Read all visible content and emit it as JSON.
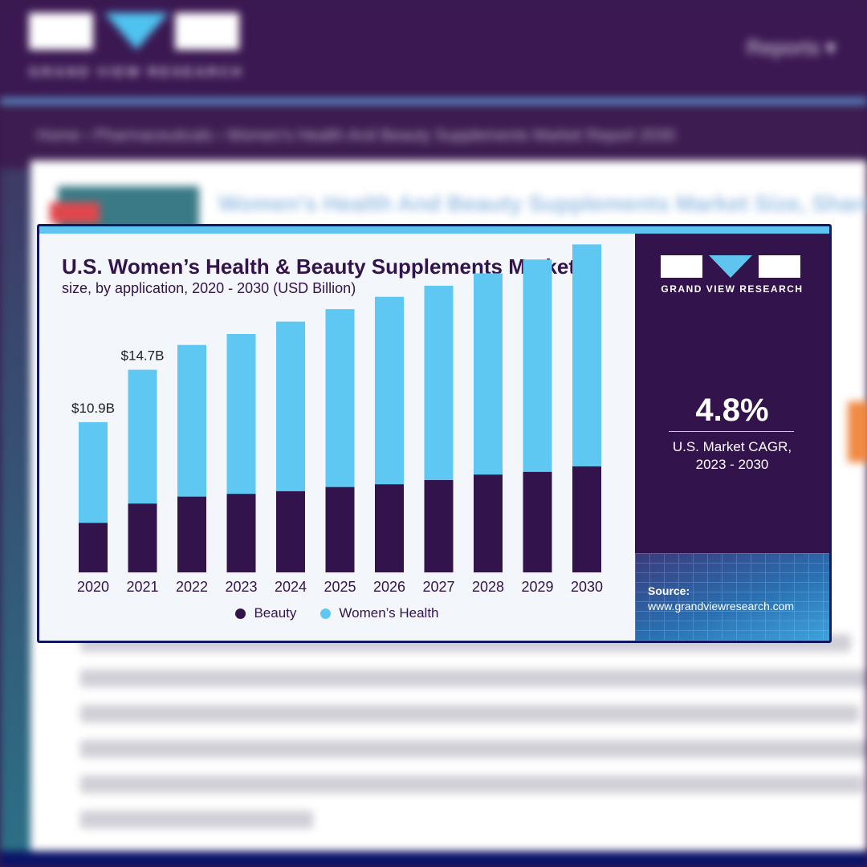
{
  "background_page": {
    "logo_text": "GRAND VIEW RESEARCH",
    "nav_reports": "Reports ▾",
    "breadcrumb": "Home › Pharmaceuticals › Women's Health And Beauty Supplements Market Report 2030",
    "page_title": "Women's Health And Beauty Supplements Market Size, Share &"
  },
  "chart_data": {
    "type": "bar",
    "stacked": true,
    "title": "U.S. Women’s Health & Beauty Supplements Market",
    "subtitle": "size, by application, 2020 - 2030 (USD Billion)",
    "xlabel": "",
    "ylabel": "",
    "categories": [
      "2020",
      "2021",
      "2022",
      "2023",
      "2024",
      "2025",
      "2026",
      "2027",
      "2028",
      "2029",
      "2030"
    ],
    "series": [
      {
        "name": "Beauty",
        "color": "#33134b",
        "values": [
          3.6,
          5.0,
          5.5,
          5.7,
          5.9,
          6.2,
          6.4,
          6.7,
          7.1,
          7.3,
          7.7
        ]
      },
      {
        "name": "Women’s Health",
        "color": "#5fc8f2",
        "values": [
          7.3,
          9.7,
          11.0,
          11.6,
          12.3,
          12.9,
          13.6,
          14.1,
          14.6,
          15.4,
          16.1
        ]
      }
    ],
    "data_labels": [
      {
        "category": "2020",
        "text": "$10.9B"
      },
      {
        "category": "2021",
        "text": "$14.7B"
      }
    ],
    "ylim": [
      0,
      24
    ],
    "grid": false,
    "legend_position": "bottom"
  },
  "side_panel": {
    "brand": "GRAND VIEW RESEARCH",
    "cagr_value": "4.8%",
    "cagr_label": "U.S. Market CAGR,\n2023 - 2030",
    "source_label": "Source:",
    "source_url": "www.grandviewresearch.com"
  },
  "colors": {
    "header_purple": "#3b1852",
    "panel_purple": "#33134b",
    "accent_blue": "#5fc8f2",
    "card_border": "#10195e"
  }
}
